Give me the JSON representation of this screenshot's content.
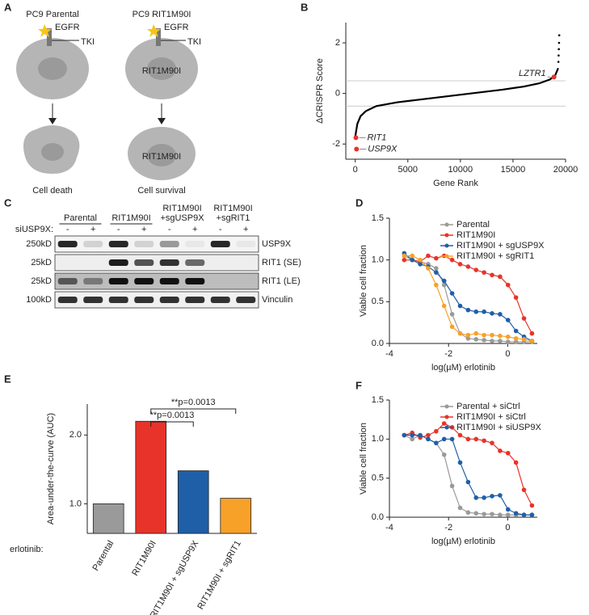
{
  "diagram": {
    "panel": "A",
    "titles": [
      "PC9 Parental",
      "PC9 RIT1M90I"
    ],
    "labels": [
      "EGFR",
      "TKI",
      "RIT1M90I"
    ],
    "outcomes": [
      "Cell death",
      "Cell survival"
    ]
  },
  "blot": {
    "panel": "C",
    "groups": [
      [
        "Parental"
      ],
      [
        "RIT1M90I"
      ],
      [
        "RIT1M90I",
        "+sgUSP9X"
      ],
      [
        "RIT1M90I",
        "+sgRIT1"
      ]
    ],
    "treatment_label": "siUSP9X:",
    "lanes": [
      "-",
      "+",
      "-",
      "+",
      "-",
      "+",
      "-",
      "+"
    ],
    "rows": [
      {
        "marker": "250kD",
        "name": "USP9X"
      },
      {
        "marker": "25kD",
        "name": "RIT1 (SE)"
      },
      {
        "marker": "25kD",
        "name": "RIT1 (LE)"
      },
      {
        "marker": "100kD",
        "name": "Vinculin"
      }
    ]
  },
  "chart_data": [
    {
      "type": "line",
      "panel": "B",
      "x_label": "Gene Rank",
      "y_label": "ΔCRISPR Score",
      "x": [
        0,
        200,
        500,
        1000,
        2000,
        4000,
        6000,
        8000,
        10000,
        12000,
        14000,
        16000,
        17500,
        18500,
        19000,
        19300
      ],
      "series": [
        {
          "color": "#000000",
          "values": [
            -1.7,
            -1.2,
            -0.9,
            -0.7,
            -0.5,
            -0.35,
            -0.25,
            -0.15,
            -0.05,
            0.05,
            0.15,
            0.27,
            0.4,
            0.55,
            0.7,
            1.0
          ]
        }
      ],
      "tail": {
        "x": [
          19320,
          19340,
          19360,
          19380,
          19400
        ],
        "values": [
          1.25,
          1.5,
          1.75,
          2.0,
          2.3
        ]
      },
      "highlights": [
        {
          "label": "RIT1",
          "x": 60,
          "y": -1.75
        },
        {
          "label": "USP9X",
          "x": 120,
          "y": -2.2
        },
        {
          "label": "LZTR1",
          "x": 18900,
          "y": 0.65
        }
      ],
      "highlight_color": "#e8332a",
      "reference_lines": [
        0.5,
        -0.5
      ],
      "xlim": [
        -900,
        20000
      ],
      "xticks": [
        0,
        5000,
        10000,
        15000,
        20000
      ],
      "ylim": [
        -2.6,
        2.8
      ],
      "yticks": [
        -2,
        0,
        2
      ]
    },
    {
      "type": "dose_response",
      "panel": "D",
      "x_label": "log(µM) erlotinib",
      "y_label": "Viable cell fraction",
      "legend": "upper right",
      "x": [
        -3.5,
        -3.23,
        -2.96,
        -2.69,
        -2.42,
        -2.15,
        -1.88,
        -1.61,
        -1.34,
        -1.07,
        -0.8,
        -0.53,
        -0.26,
        0.01,
        0.28,
        0.55,
        0.82
      ],
      "series": [
        {
          "name": "Parental",
          "color": "#9a9a9a",
          "values": [
            1.05,
            1.0,
            0.98,
            0.95,
            0.9,
            0.7,
            0.35,
            0.12,
            0.06,
            0.05,
            0.04,
            0.03,
            0.03,
            0.02,
            0.02,
            0.02,
            0.02
          ]
        },
        {
          "name": "RIT1M90I",
          "color": "#e8332a",
          "values": [
            1.0,
            1.0,
            0.98,
            1.05,
            1.02,
            1.05,
            1.0,
            0.95,
            0.92,
            0.88,
            0.85,
            0.82,
            0.8,
            0.7,
            0.55,
            0.3,
            0.12
          ]
        },
        {
          "name": "RIT1M90I + sgUSP9X",
          "color": "#1f5fa8",
          "values": [
            1.08,
            1.0,
            0.95,
            0.92,
            0.85,
            0.75,
            0.6,
            0.45,
            0.4,
            0.38,
            0.38,
            0.36,
            0.35,
            0.28,
            0.15,
            0.08,
            0.03
          ]
        },
        {
          "name": "RIT1M90I + sgRIT1",
          "color": "#f7a128",
          "values": [
            1.05,
            1.05,
            1.0,
            0.9,
            0.7,
            0.45,
            0.2,
            0.12,
            0.1,
            0.12,
            0.1,
            0.1,
            0.09,
            0.08,
            0.06,
            0.05,
            0.03
          ]
        }
      ],
      "xlim": [
        -4,
        1
      ],
      "xticks": [
        -4,
        -2,
        0
      ],
      "ylim": [
        0,
        1.5
      ],
      "yticks": [
        {
          "value": 0,
          "label": "0.0"
        },
        {
          "value": 0.5,
          "label": "0.5"
        },
        {
          "value": 1,
          "label": "1.0"
        },
        {
          "value": 1.5,
          "label": "1.5"
        }
      ]
    },
    {
      "type": "bar",
      "panel": "E",
      "y_label": "Area-under-the-curve (AUC)",
      "x_prefix": "erlotinib:",
      "categories": [
        "Parental",
        "RIT1M90I",
        "RIT1M90I + sgUSP9X",
        "RIT1M90I + sgRIT1"
      ],
      "values": [
        1.0,
        2.2,
        1.48,
        1.08
      ],
      "colors": [
        "#9a9a9a",
        "#e8332a",
        "#1f5fa8",
        "#f7a128"
      ],
      "annotations": [
        "**p=0.0013",
        "**p=0.0013"
      ],
      "ylim": [
        0.57,
        2.45
      ],
      "yticks": [
        {
          "value": 1,
          "label": "1.0"
        },
        {
          "value": 2,
          "label": "2.0"
        }
      ]
    },
    {
      "type": "dose_response",
      "panel": "F",
      "x_label": "log(µM) erlotinib",
      "y_label": "Viable cell fraction",
      "legend": "upper right",
      "x": [
        -3.5,
        -3.23,
        -2.96,
        -2.69,
        -2.42,
        -2.15,
        -1.88,
        -1.61,
        -1.34,
        -1.07,
        -0.8,
        -0.53,
        -0.26,
        0.01,
        0.28,
        0.55,
        0.82
      ],
      "series": [
        {
          "name": "Parental + siCtrl",
          "color": "#9a9a9a",
          "values": [
            1.05,
            1.0,
            1.05,
            1.0,
            0.95,
            0.8,
            0.4,
            0.12,
            0.06,
            0.05,
            0.04,
            0.04,
            0.03,
            0.03,
            0.03,
            0.03,
            0.03
          ]
        },
        {
          "name": "RIT1M90I + siCtrl",
          "color": "#e8332a",
          "values": [
            1.05,
            1.08,
            1.02,
            1.05,
            1.1,
            1.2,
            1.15,
            1.05,
            1.0,
            1.0,
            0.98,
            0.95,
            0.85,
            0.82,
            0.7,
            0.35,
            0.15
          ]
        },
        {
          "name": "RIT1M90I + siUSP9X",
          "color": "#1f5fa8",
          "values": [
            1.05,
            1.05,
            1.05,
            1.0,
            0.95,
            1.0,
            1.0,
            0.7,
            0.45,
            0.25,
            0.25,
            0.27,
            0.28,
            0.1,
            0.05,
            0.03,
            0.03
          ]
        }
      ],
      "xlim": [
        -4,
        1
      ],
      "xticks": [
        -4,
        -2,
        0
      ],
      "ylim": [
        0,
        1.5
      ],
      "yticks": [
        {
          "value": 0,
          "label": "0.0"
        },
        {
          "value": 0.5,
          "label": "0.5"
        },
        {
          "value": 1,
          "label": "1.0"
        },
        {
          "value": 1.5,
          "label": "1.5"
        }
      ]
    }
  ]
}
